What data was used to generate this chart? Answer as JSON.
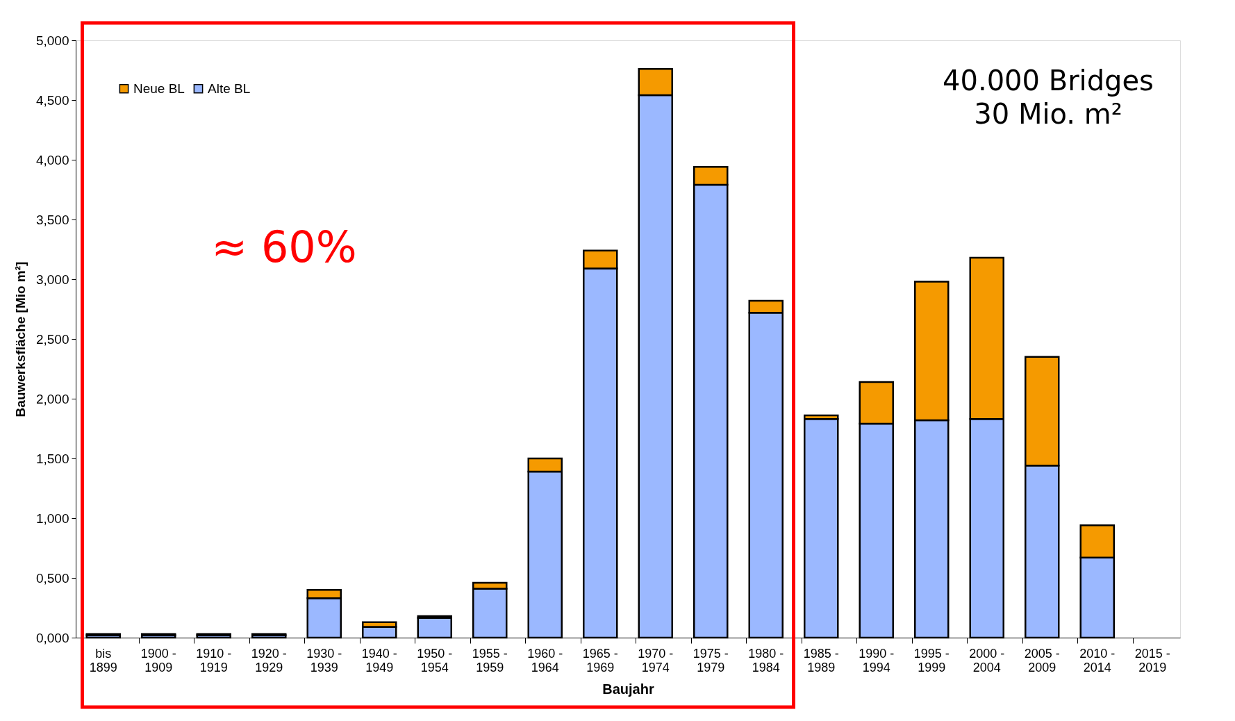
{
  "chart_data": {
    "type": "bar",
    "stacked": true,
    "xlabel": "Baujahr",
    "ylabel": "Bauwerksfläche [Mio m²]",
    "categories": [
      "bis 1899",
      "1900 - 1909",
      "1910 - 1919",
      "1920 - 1929",
      "1930 - 1939",
      "1940 - 1949",
      "1950 - 1954",
      "1955 - 1959",
      "1960 - 1964",
      "1965 - 1969",
      "1970 - 1974",
      "1975 - 1979",
      "1980 - 1984",
      "1985 - 1989",
      "1990 - 1994",
      "1995 - 1999",
      "2000 - 2004",
      "2005 - 2009",
      "2010 - 2014",
      "2015 - 2019"
    ],
    "series": [
      {
        "name": "Alte BL",
        "color": "#9bb8ff",
        "values": [
          0.02,
          0.02,
          0.02,
          0.02,
          0.33,
          0.09,
          0.165,
          0.41,
          1.39,
          3.09,
          4.54,
          3.79,
          2.72,
          1.83,
          1.79,
          1.82,
          1.83,
          1.44,
          0.67,
          null
        ]
      },
      {
        "name": "Neue BL",
        "color": "#f59a00",
        "values": [
          0.01,
          0.01,
          0.01,
          0.01,
          0.07,
          0.04,
          0.015,
          0.05,
          0.11,
          0.15,
          0.22,
          0.15,
          0.1,
          0.03,
          0.35,
          1.16,
          1.35,
          0.91,
          0.27,
          null
        ]
      }
    ],
    "ylim": [
      0,
      5
    ],
    "yticks": [
      {
        "value": 0,
        "label": "0,000"
      },
      {
        "value": 0.5,
        "label": "0,500"
      },
      {
        "value": 1,
        "label": "1,000"
      },
      {
        "value": 1.5,
        "label": "1,500"
      },
      {
        "value": 2,
        "label": "2,000"
      },
      {
        "value": 2.5,
        "label": "2,500"
      },
      {
        "value": 3,
        "label": "3,000"
      },
      {
        "value": 3.5,
        "label": "3,500"
      },
      {
        "value": 4,
        "label": "4,000"
      },
      {
        "value": 4.5,
        "label": "4,500"
      },
      {
        "value": 5,
        "label": "5,000"
      }
    ],
    "grid": false,
    "legend": "top left",
    "annotations": [
      "40.000 Bridges",
      "30 Mio. m²",
      "≈ 60%"
    ]
  }
}
